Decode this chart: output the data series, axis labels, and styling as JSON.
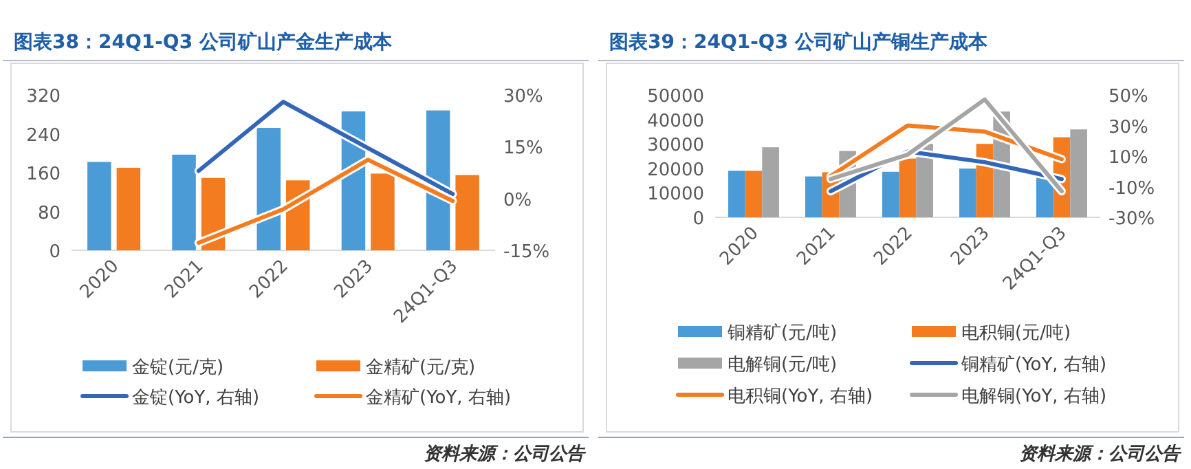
{
  "chart_data": [
    {
      "type": "bar",
      "title": "图表38：24Q1-Q3 公司矿山产金生产成本",
      "categories": [
        "2020",
        "2021",
        "2022",
        "2023",
        "24Q1-Q3"
      ],
      "series": [
        {
          "name": "金锭(元/克)",
          "color": "#4a9bd6",
          "values": [
            182,
            197,
            252,
            286,
            288
          ]
        },
        {
          "name": "金精矿(元/克)",
          "color": "#f47c20",
          "values": [
            170,
            149,
            144,
            158,
            155
          ]
        },
        {
          "name": "金锭(YoY, 右轴)",
          "type": "line",
          "axis": "y2",
          "color": "#3366b8",
          "values": [
            null,
            8.0,
            28.0,
            14.6,
            1.3
          ]
        },
        {
          "name": "金精矿(YoY, 右轴)",
          "type": "line",
          "axis": "y2",
          "color": "#f47c20",
          "values": [
            null,
            -12.8,
            -3.1,
            11.2,
            -0.7
          ]
        }
      ],
      "ylim": [
        0,
        320
      ],
      "yticks": [
        0,
        80,
        160,
        240,
        320
      ],
      "y2lim": [
        -15,
        30
      ],
      "y2ticks": [
        {
          "value": -15,
          "label": "-15%"
        },
        {
          "value": 0,
          "label": "0%"
        },
        {
          "value": 15,
          "label": "15%"
        },
        {
          "value": 30,
          "label": "30%"
        }
      ],
      "legend": "bottom",
      "grid": false,
      "annotations": [
        "资料来源：公司公告"
      ]
    },
    {
      "type": "bar",
      "title": "图表39：24Q1-Q3 公司矿山产铜生产成本",
      "categories": [
        "2020",
        "2021",
        "2022",
        "2023",
        "24Q1-Q3"
      ],
      "series": [
        {
          "name": "铜精矿(元/吨)",
          "color": "#4a9bd6",
          "values": [
            19000,
            16700,
            18600,
            19900,
            17500
          ]
        },
        {
          "name": "电积铜(元/吨)",
          "color": "#f47c20",
          "values": [
            19000,
            18400,
            24000,
            30000,
            32700
          ]
        },
        {
          "name": "电解铜(元/吨)",
          "color": "#a5a5a5",
          "values": [
            28600,
            27100,
            30000,
            43200,
            35900
          ]
        },
        {
          "name": "铜精矿(YoY, 右轴)",
          "type": "line",
          "axis": "y2",
          "color": "#3366b8",
          "values": [
            null,
            -13,
            13,
            6,
            -5
          ]
        },
        {
          "name": "电积铜(YoY, 右轴)",
          "type": "line",
          "axis": "y2",
          "color": "#f47c20",
          "values": [
            null,
            -3,
            30,
            26,
            8
          ]
        },
        {
          "name": "电解铜(YoY, 右轴)",
          "type": "line",
          "axis": "y2",
          "color": "#a5a5a5",
          "values": [
            null,
            -5,
            11,
            47,
            -13
          ]
        }
      ],
      "ylim": [
        0,
        50000
      ],
      "yticks": [
        0,
        10000,
        20000,
        30000,
        40000,
        50000
      ],
      "y2lim": [
        -30,
        50
      ],
      "y2ticks": [
        {
          "value": -30,
          "label": "-30%"
        },
        {
          "value": -10,
          "label": "-10%"
        },
        {
          "value": 10,
          "label": "10%"
        },
        {
          "value": 30,
          "label": "30%"
        },
        {
          "value": 50,
          "label": "50%"
        }
      ],
      "legend": "bottom",
      "grid": false,
      "annotations": [
        "资料来源：公司公告"
      ]
    }
  ]
}
